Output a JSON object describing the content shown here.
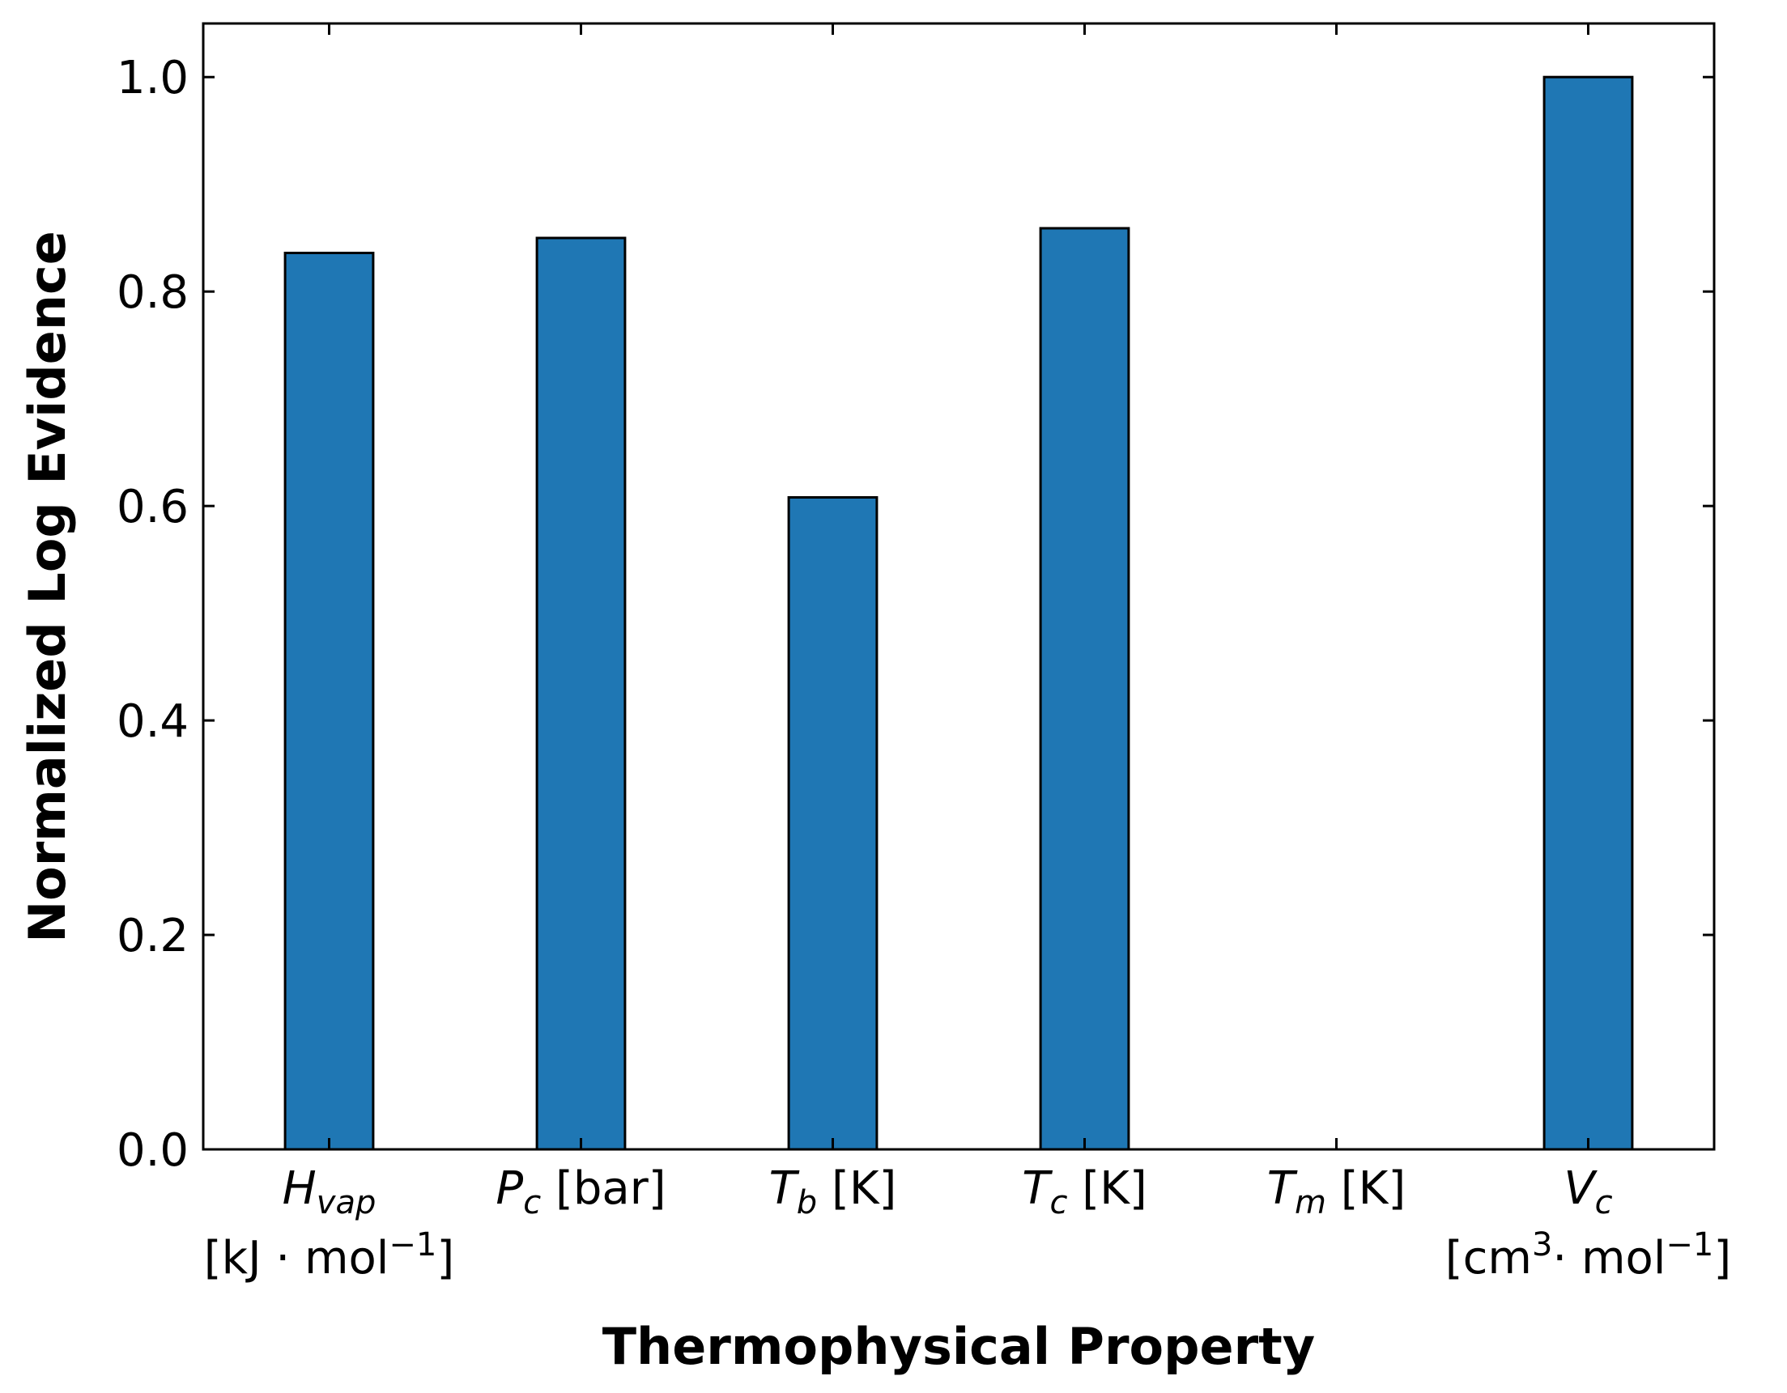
{
  "chart_data": {
    "type": "bar",
    "categories": [
      {
        "symbol": "H",
        "subscript": "vap",
        "unit": "",
        "unit_line2": "[kJ · mol",
        "unit_line2_sup": "−1",
        "unit_line2_end": "]"
      },
      {
        "symbol": "P",
        "subscript": "c",
        "unit": " [bar]",
        "unit_line2": "",
        "unit_line2_sup": "",
        "unit_line2_end": ""
      },
      {
        "symbol": "T",
        "subscript": "b",
        "unit": " [K]",
        "unit_line2": "",
        "unit_line2_sup": "",
        "unit_line2_end": ""
      },
      {
        "symbol": "T",
        "subscript": "c",
        "unit": " [K]",
        "unit_line2": "",
        "unit_line2_sup": "",
        "unit_line2_end": ""
      },
      {
        "symbol": "T",
        "subscript": "m",
        "unit": " [K]",
        "unit_line2": "",
        "unit_line2_sup": "",
        "unit_line2_end": ""
      },
      {
        "symbol": "V",
        "subscript": "c",
        "unit": "",
        "unit_line2": "[cm",
        "unit_line2_sup": "3",
        "unit_line2_end": "· mol",
        "unit_line2_sup2": "−1",
        "unit_line2_end2": "]"
      }
    ],
    "values": [
      0.836,
      0.85,
      0.608,
      0.859,
      0.0,
      1.0
    ],
    "xlabel": "Thermophysical Property",
    "ylabel": "Normalized Log Evidence",
    "ylim": [
      0.0,
      1.05
    ],
    "yticks": [
      0.0,
      0.2,
      0.4,
      0.6,
      0.8,
      1.0
    ],
    "ytick_labels": [
      "0.0",
      "0.2",
      "0.4",
      "0.6",
      "0.8",
      "1.0"
    ],
    "grid": false,
    "legend": "none",
    "colors": {
      "bar_fill": "#1f77b4",
      "bar_edge": "#000000",
      "axes": "#000000"
    }
  }
}
